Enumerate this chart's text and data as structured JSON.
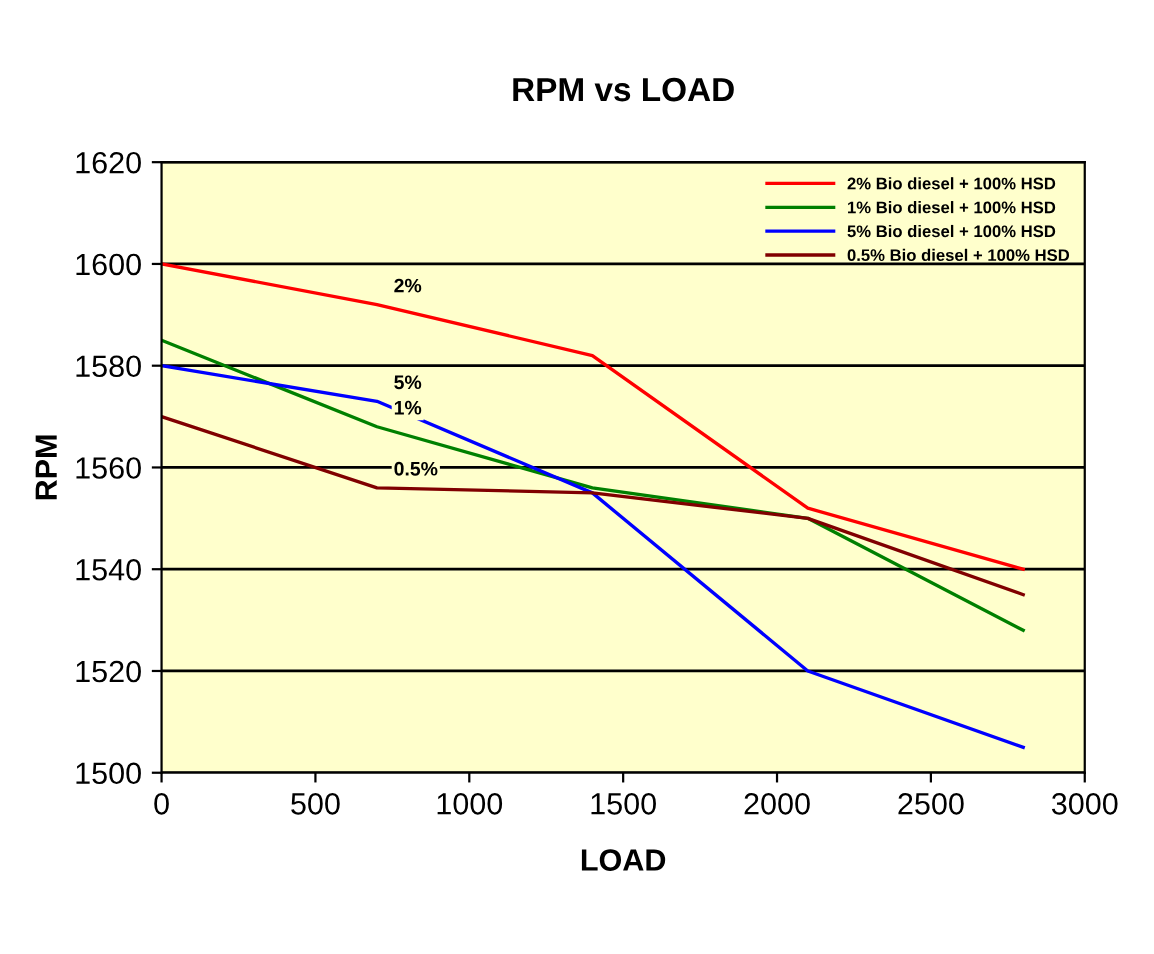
{
  "chart_data": {
    "type": "line",
    "title": "RPM vs LOAD",
    "xlabel": "LOAD",
    "ylabel": "RPM",
    "x": [
      0,
      700,
      1400,
      2100,
      2800
    ],
    "series": [
      {
        "name": "2% Bio diesel + 100% HSD",
        "color": "#ff0000",
        "values": [
          1600,
          1592,
          1582,
          1552,
          1540
        ]
      },
      {
        "name": "1% Bio diesel + 100% HSD",
        "color": "#008000",
        "values": [
          1585,
          1568,
          1556,
          1550,
          1528
        ]
      },
      {
        "name": "5% Bio diesel + 100% HSD",
        "color": "#0000ff",
        "values": [
          1580,
          1573,
          1555,
          1520,
          1505
        ]
      },
      {
        "name": "0.5% Bio diesel + 100% HSD",
        "color": "#800000",
        "values": [
          1570,
          1556,
          1555,
          1550,
          1535
        ]
      }
    ],
    "annotations": [
      "2%",
      "1%",
      "5%",
      "0.5%"
    ],
    "xlim": [
      0,
      3000
    ],
    "xticks": [
      0,
      500,
      1000,
      1500,
      2000,
      2500,
      3000
    ],
    "ylim": [
      1500,
      1620
    ],
    "yticks": [
      1500,
      1520,
      1540,
      1560,
      1580,
      1600,
      1620
    ],
    "grid": "y",
    "legend": "top right",
    "marker": "none",
    "line_style": "solid"
  }
}
